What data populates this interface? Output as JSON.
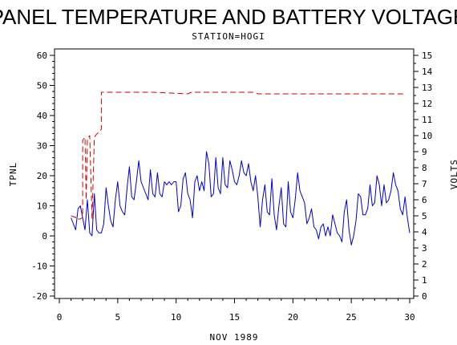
{
  "chart_data": {
    "type": "line",
    "title": "PANEL TEMPERATURE AND BATTERY VOLTAGE",
    "subtitle": "STATION=HOGI",
    "xlabel": "NOV 1989",
    "ylabel": "TPNL",
    "y2label": "VOLTS",
    "xlim": [
      0,
      30
    ],
    "ylim": [
      -20,
      60
    ],
    "y2lim": [
      0,
      15
    ],
    "x_ticks": [
      "0",
      "5",
      "10",
      "15",
      "20",
      "25",
      "30"
    ],
    "y_ticks": [
      "-20",
      "-10",
      "0",
      "10",
      "20",
      "30",
      "40",
      "50",
      "60"
    ],
    "y2_ticks": [
      "0",
      "1",
      "2",
      "3",
      "4",
      "5",
      "6",
      "7",
      "8",
      "9",
      "10",
      "11",
      "12",
      "13",
      "14",
      "15"
    ],
    "grid": false,
    "series": [
      {
        "axis": "left",
        "color": "#0000cc",
        "style": "solid",
        "points": [
          [
            1.0,
            6
          ],
          [
            1.2,
            4
          ],
          [
            1.4,
            2
          ],
          [
            1.6,
            9
          ],
          [
            1.8,
            10
          ],
          [
            2.0,
            6
          ],
          [
            2.2,
            2
          ],
          [
            2.4,
            12
          ],
          [
            2.6,
            1
          ],
          [
            2.8,
            0
          ],
          [
            3.0,
            14
          ],
          [
            3.2,
            2
          ],
          [
            3.4,
            1
          ],
          [
            3.6,
            1
          ],
          [
            3.8,
            4
          ],
          [
            4.0,
            16
          ],
          [
            4.2,
            10
          ],
          [
            4.4,
            5
          ],
          [
            4.6,
            3
          ],
          [
            4.8,
            12
          ],
          [
            5.0,
            18
          ],
          [
            5.2,
            10
          ],
          [
            5.4,
            8
          ],
          [
            5.6,
            7
          ],
          [
            5.8,
            16
          ],
          [
            6.0,
            23
          ],
          [
            6.2,
            13
          ],
          [
            6.4,
            12
          ],
          [
            6.6,
            18
          ],
          [
            6.8,
            25
          ],
          [
            7.0,
            18
          ],
          [
            7.2,
            16
          ],
          [
            7.4,
            14
          ],
          [
            7.6,
            12
          ],
          [
            7.8,
            22
          ],
          [
            8.0,
            14
          ],
          [
            8.2,
            13
          ],
          [
            8.4,
            21
          ],
          [
            8.6,
            14
          ],
          [
            8.8,
            13
          ],
          [
            9.0,
            18
          ],
          [
            9.2,
            17
          ],
          [
            9.4,
            18
          ],
          [
            9.6,
            17
          ],
          [
            9.8,
            18
          ],
          [
            10.0,
            18
          ],
          [
            10.2,
            8
          ],
          [
            10.4,
            10
          ],
          [
            10.6,
            19
          ],
          [
            10.8,
            21
          ],
          [
            11.0,
            14
          ],
          [
            11.2,
            12
          ],
          [
            11.4,
            6
          ],
          [
            11.6,
            18
          ],
          [
            11.8,
            20
          ],
          [
            12.0,
            15
          ],
          [
            12.2,
            18
          ],
          [
            12.4,
            15
          ],
          [
            12.6,
            28
          ],
          [
            12.8,
            24
          ],
          [
            13.0,
            13
          ],
          [
            13.2,
            14
          ],
          [
            13.4,
            26
          ],
          [
            13.6,
            16
          ],
          [
            13.8,
            14
          ],
          [
            14.0,
            26
          ],
          [
            14.2,
            17
          ],
          [
            14.4,
            16
          ],
          [
            14.6,
            25
          ],
          [
            14.8,
            22
          ],
          [
            15.0,
            18
          ],
          [
            15.2,
            17
          ],
          [
            15.4,
            20
          ],
          [
            15.6,
            25
          ],
          [
            15.8,
            21
          ],
          [
            16.0,
            20
          ],
          [
            16.2,
            24
          ],
          [
            16.4,
            18
          ],
          [
            16.6,
            15
          ],
          [
            16.8,
            20
          ],
          [
            17.0,
            13
          ],
          [
            17.2,
            3
          ],
          [
            17.4,
            12
          ],
          [
            17.6,
            17
          ],
          [
            17.8,
            8
          ],
          [
            18.0,
            7
          ],
          [
            18.2,
            19
          ],
          [
            18.4,
            7
          ],
          [
            18.6,
            2
          ],
          [
            18.8,
            10
          ],
          [
            19.0,
            16
          ],
          [
            19.2,
            4
          ],
          [
            19.4,
            3
          ],
          [
            19.6,
            18
          ],
          [
            19.8,
            8
          ],
          [
            20.0,
            6
          ],
          [
            20.2,
            12
          ],
          [
            20.4,
            21
          ],
          [
            20.6,
            15
          ],
          [
            20.8,
            13
          ],
          [
            21.0,
            11
          ],
          [
            21.2,
            4
          ],
          [
            21.4,
            6
          ],
          [
            21.6,
            9
          ],
          [
            21.8,
            3
          ],
          [
            22.0,
            2
          ],
          [
            22.2,
            -1
          ],
          [
            22.4,
            3
          ],
          [
            22.6,
            4
          ],
          [
            22.8,
            0
          ],
          [
            23.0,
            3
          ],
          [
            23.2,
            0
          ],
          [
            23.4,
            7
          ],
          [
            23.6,
            4
          ],
          [
            23.8,
            1
          ],
          [
            24.0,
            0
          ],
          [
            24.2,
            -2
          ],
          [
            24.4,
            8
          ],
          [
            24.6,
            12
          ],
          [
            24.8,
            2
          ],
          [
            25.0,
            -3
          ],
          [
            25.2,
            0
          ],
          [
            25.4,
            5
          ],
          [
            25.6,
            14
          ],
          [
            25.8,
            13
          ],
          [
            26.0,
            7
          ],
          [
            26.2,
            7
          ],
          [
            26.4,
            9
          ],
          [
            26.6,
            17
          ],
          [
            26.8,
            10
          ],
          [
            27.0,
            11
          ],
          [
            27.2,
            20
          ],
          [
            27.4,
            17
          ],
          [
            27.6,
            10
          ],
          [
            27.8,
            17
          ],
          [
            28.0,
            11
          ],
          [
            28.2,
            12
          ],
          [
            28.4,
            15
          ],
          [
            28.6,
            21
          ],
          [
            28.8,
            17
          ],
          [
            29.0,
            15
          ],
          [
            29.2,
            9
          ],
          [
            29.4,
            7
          ],
          [
            29.6,
            13
          ],
          [
            29.8,
            6
          ],
          [
            30.0,
            1
          ]
        ]
      },
      {
        "axis": "right",
        "color": "#cc0000",
        "style": "dashed",
        "points": [
          [
            1.0,
            5.0
          ],
          [
            1.4,
            4.9
          ],
          [
            1.4,
            4.8
          ],
          [
            1.8,
            4.8
          ],
          [
            2.0,
            4.9
          ],
          [
            2.0,
            9.7
          ],
          [
            2.2,
            9.9
          ],
          [
            2.3,
            6.0
          ],
          [
            2.4,
            9.8
          ],
          [
            2.6,
            10.0
          ],
          [
            2.8,
            4.8
          ],
          [
            3.0,
            9.9
          ],
          [
            3.2,
            10.1
          ],
          [
            3.4,
            10.2
          ],
          [
            3.6,
            10.4
          ],
          [
            3.6,
            12.7
          ],
          [
            5.0,
            12.7
          ],
          [
            8.0,
            12.7
          ],
          [
            11.0,
            12.6
          ],
          [
            11.3,
            12.7
          ],
          [
            14.0,
            12.7
          ],
          [
            16.6,
            12.7
          ],
          [
            17.0,
            12.6
          ],
          [
            20.0,
            12.6
          ],
          [
            25.0,
            12.6
          ],
          [
            29.6,
            12.6
          ]
        ]
      }
    ]
  }
}
